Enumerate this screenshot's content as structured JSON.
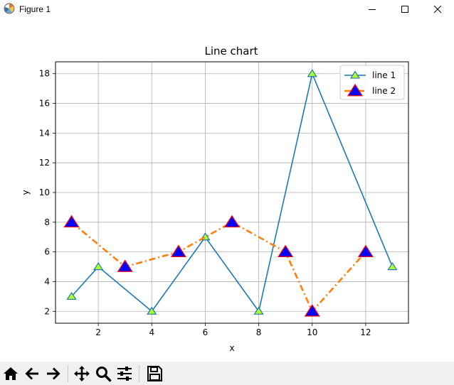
{
  "window": {
    "title": "Figure 1"
  },
  "toolbar": {
    "buttons": [
      {
        "name": "home-button",
        "icon": "home-icon"
      },
      {
        "name": "back-button",
        "icon": "arrow-left-icon"
      },
      {
        "name": "forward-button",
        "icon": "arrow-right-icon"
      },
      {
        "name": "pan-button",
        "icon": "move-icon"
      },
      {
        "name": "zoom-button",
        "icon": "magnifier-icon"
      },
      {
        "name": "subplots-button",
        "icon": "sliders-icon"
      },
      {
        "name": "save-button",
        "icon": "floppy-disk-icon"
      }
    ]
  },
  "chart_data": {
    "type": "line",
    "title": "Line chart",
    "xlabel": "x",
    "ylabel": "y",
    "xlim": [
      0.4,
      13.6
    ],
    "ylim": [
      1.2,
      18.8
    ],
    "xticks": [
      2,
      4,
      6,
      8,
      10,
      12
    ],
    "yticks": [
      2,
      4,
      6,
      8,
      10,
      12,
      14,
      16,
      18
    ],
    "grid": true,
    "legend_position": "top-right",
    "series": [
      {
        "name": "line 1",
        "x": [
          1,
          2,
          4,
          6,
          8,
          10,
          13
        ],
        "y": [
          3,
          5,
          2,
          7,
          2,
          18,
          5
        ],
        "color": "#1f77b4",
        "linestyle": "solid",
        "marker": "triangle",
        "marker_face": "#adff2f",
        "marker_edge": "#1f77b4"
      },
      {
        "name": "line 2",
        "x": [
          1,
          3,
          5,
          7,
          9,
          10,
          12
        ],
        "y": [
          8,
          5,
          6,
          8,
          6,
          2,
          6
        ],
        "color": "#ff7f0e",
        "linestyle": "dashdot",
        "marker": "triangle",
        "marker_face": "#0000ff",
        "marker_edge": "#ff0000"
      }
    ]
  }
}
